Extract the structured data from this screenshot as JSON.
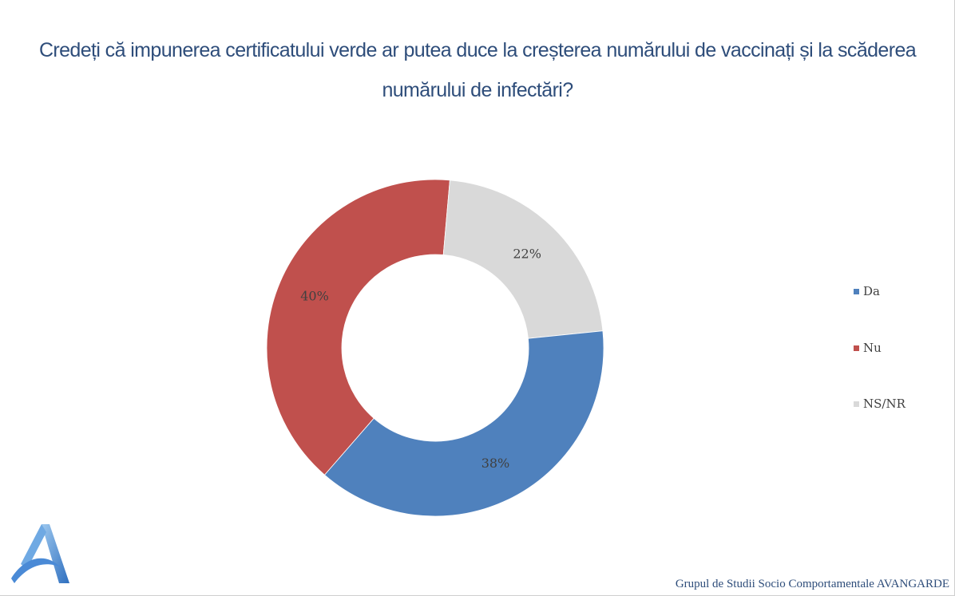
{
  "title": "Credeți că impunerea certificatului verde ar putea duce la creșterea numărului de vaccinați și la scăderea numărului de infectări?",
  "chart_data": {
    "type": "pie",
    "subtype": "doughnut",
    "title": "Credeți că impunerea certificatului verde ar putea duce la creșterea numărului de vaccinați și la scăderea numărului de infectări?",
    "categories": [
      "Da",
      "Nu",
      "NS/NR"
    ],
    "values": [
      38,
      40,
      22
    ],
    "labels": [
      "38%",
      "40%",
      "22%"
    ],
    "colors": [
      "#4f81bd",
      "#c0504d",
      "#d9d9d9"
    ],
    "legend_position": "right"
  },
  "legend": {
    "items": [
      {
        "label": "Da",
        "color": "#4f81bd"
      },
      {
        "label": "Nu",
        "color": "#c0504d"
      },
      {
        "label": "NS/NR",
        "color": "#d9d9d9"
      }
    ]
  },
  "logo": {
    "icon": "avangarde-logo-icon"
  },
  "footer": {
    "text": "Grupul de Studii Socio Comportamentale AVANGARDE"
  }
}
